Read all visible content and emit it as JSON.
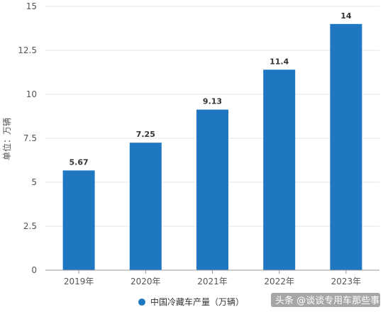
{
  "chart_data": {
    "type": "bar",
    "categories": [
      "2019年",
      "2020年",
      "2021年",
      "2022年",
      "2023年"
    ],
    "series": [
      {
        "name": "中国冷藏车产量（万辆）",
        "values": [
          5.67,
          7.25,
          9.13,
          11.4,
          14
        ]
      }
    ],
    "data_labels": [
      "5.67",
      "7.25",
      "9.13",
      "11.4",
      "14"
    ],
    "ylabel": "单位：万辆",
    "ylim": [
      0,
      15
    ],
    "yticks": [
      0,
      2.5,
      5,
      7.5,
      10,
      12.5,
      15
    ],
    "ytick_labels": [
      "0",
      "2.5",
      "5",
      "7.5",
      "10",
      "12.5",
      "15"
    ],
    "grid": true,
    "legend_position": "bottom-center",
    "bar_color": "#1f77c2"
  },
  "watermark": {
    "text": "头条 @谈谈专用车那些事"
  }
}
